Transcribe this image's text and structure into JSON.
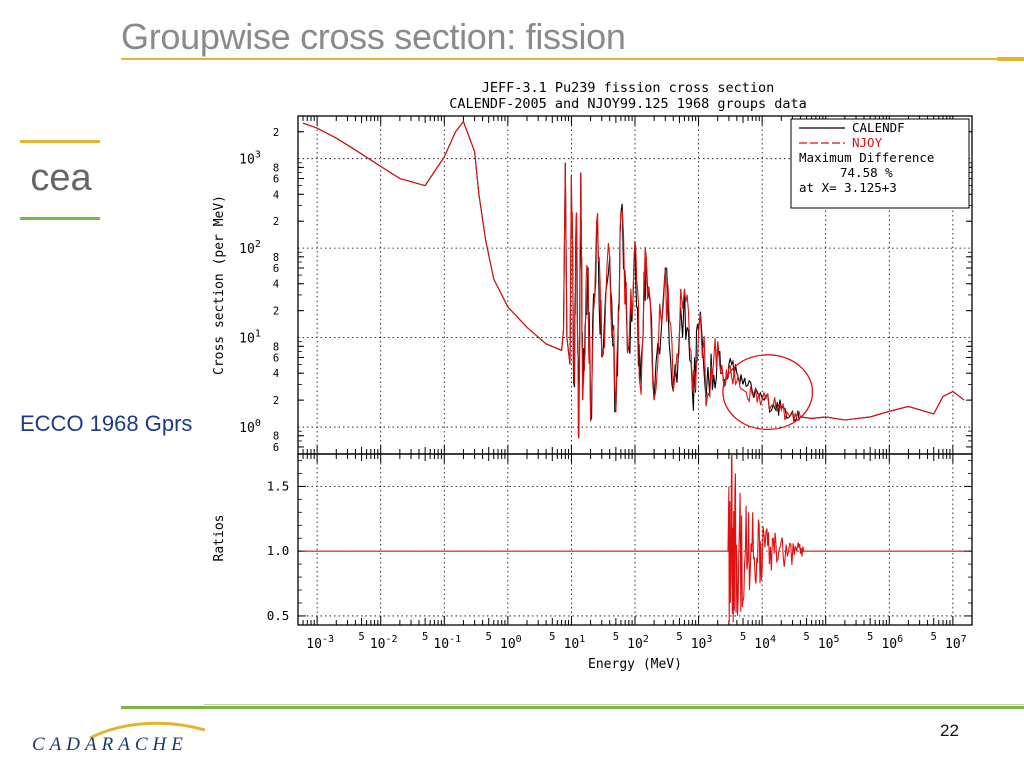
{
  "slide": {
    "title": "Groupwise cross section: fission",
    "side_label": "ECCO 1968 Gprs",
    "page_number": "22",
    "logo_left_text": "cea",
    "logo_bottom_text": "CADARACHE",
    "colors": {
      "title": "#8a8a8a",
      "title_rule": "#e6b330",
      "bottom_rule": "#7ab648",
      "side_label": "#1a3a8a",
      "calendf": "#000000",
      "njoy": "#e01010",
      "highlight_ellipse": "#e01010"
    }
  },
  "chart_data": [
    {
      "type": "line",
      "title": "JEFF-3.1 Pu239 fission cross section",
      "subtitle": "CALENDF-2005 and NJOY99.125 1968 groups data",
      "xlabel": "",
      "ylabel": "Cross section (per MeV)",
      "xscale": "log",
      "yscale": "log",
      "xlim": [
        0.0005,
        20000000
      ],
      "ylim": [
        0.5,
        3000
      ],
      "grid": true,
      "legend_position": "top-right",
      "series": [
        {
          "name": "CALENDF",
          "style": "solid",
          "color": "#000000",
          "x": [
            0.0006,
            0.001,
            0.002,
            0.004,
            0.01,
            0.02,
            0.05,
            0.1,
            0.15,
            0.2,
            0.3,
            0.35,
            0.45,
            0.6,
            1,
            2,
            4,
            7,
            7.5,
            8,
            8.5,
            9.5,
            10,
            11,
            12,
            13,
            14,
            15,
            18,
            20,
            25,
            30,
            40,
            50,
            60,
            80,
            100,
            120,
            150,
            200,
            300,
            400,
            600,
            800,
            1000,
            1500,
            2000,
            2500,
            3000,
            4000,
            5000,
            7000,
            10000,
            15000,
            20000,
            30000,
            40000,
            60000,
            100000,
            200000,
            500000,
            1000000,
            2000000,
            5000000,
            7000000,
            10000000,
            15000000
          ],
          "y": [
            2500,
            2200,
            1700,
            1250,
            820,
            600,
            500,
            1050,
            2000,
            2600,
            1200,
            400,
            120,
            45,
            22,
            13,
            8.5,
            7.2,
            12,
            900,
            10,
            5,
            650,
            3,
            250,
            0.75,
            700,
            2,
            55,
            1.2,
            200,
            6,
            80,
            1.5,
            250,
            8,
            120,
            3,
            80,
            2,
            60,
            2.5,
            35,
            2.5,
            12,
            2.2,
            9,
            2.8,
            5,
            4,
            3,
            2.5,
            2.1,
            1.8,
            1.6,
            1.5,
            1.3,
            1.25,
            1.3,
            1.2,
            1.3,
            1.5,
            1.7,
            1.4,
            2.2,
            2.5,
            2.0
          ]
        },
        {
          "name": "NJOY",
          "style": "dashed",
          "color": "#e01010",
          "x": [
            0.0006,
            0.001,
            0.002,
            0.004,
            0.01,
            0.02,
            0.05,
            0.1,
            0.15,
            0.2,
            0.3,
            0.35,
            0.45,
            0.6,
            1,
            2,
            4,
            7,
            7.5,
            8,
            8.5,
            9.5,
            10,
            11,
            12,
            13,
            14,
            15,
            18,
            20,
            25,
            30,
            40,
            50,
            60,
            80,
            100,
            120,
            150,
            200,
            300,
            400,
            600,
            800,
            1000,
            1500,
            2000,
            2500,
            3000,
            4000,
            5000,
            7000,
            10000,
            15000,
            20000,
            30000,
            40000,
            60000,
            100000,
            200000,
            500000,
            1000000,
            2000000,
            5000000,
            7000000,
            10000000,
            15000000
          ],
          "y": [
            2500,
            2200,
            1700,
            1250,
            820,
            600,
            500,
            1050,
            2000,
            2600,
            1200,
            400,
            120,
            45,
            22,
            13,
            8.5,
            7.2,
            12,
            900,
            10,
            5,
            650,
            3,
            250,
            0.75,
            700,
            2,
            55,
            1.2,
            200,
            6,
            80,
            1.5,
            250,
            8,
            120,
            3,
            80,
            2,
            60,
            2.5,
            35,
            2.5,
            12,
            2.2,
            9,
            2.8,
            4.5,
            3.2,
            2.6,
            2.3,
            2.0,
            1.75,
            1.55,
            1.45,
            1.3,
            1.25,
            1.3,
            1.2,
            1.3,
            1.5,
            1.7,
            1.4,
            2.2,
            2.5,
            2.0
          ]
        }
      ],
      "legend_notes": [
        "Maximum Difference",
        "74.58 %",
        "at X= 3.125+3"
      ],
      "y_tick_labels": [
        "10^0",
        "10^1",
        "10^2",
        "10^3"
      ],
      "y_minor_labels": [
        "6",
        "8",
        "2",
        "4",
        "6",
        "8",
        "2",
        "4",
        "6",
        "8",
        "2",
        "4",
        "6",
        "8",
        "2"
      ],
      "highlight_region": {
        "x_range": [
          3000,
          50000
        ],
        "y_range": [
          1.1,
          5.5
        ]
      }
    },
    {
      "type": "line",
      "title": "",
      "xlabel": "Energy (MeV)",
      "ylabel": "Ratios",
      "xscale": "log",
      "xlim": [
        0.0005,
        20000000
      ],
      "ylim": [
        0.43,
        1.75
      ],
      "grid": true,
      "y_ticks": [
        0.5,
        1.0,
        1.5
      ],
      "y_tick_labels": [
        "0.5",
        "1.0",
        "1.5"
      ],
      "x_ticks": [
        0.001,
        0.01,
        0.1,
        1,
        10,
        100,
        1000,
        10000,
        100000,
        1000000,
        10000000
      ],
      "x_tick_labels": [
        "10^-3",
        "10^-2",
        "10^-1",
        "10^0",
        "10^1",
        "10^2",
        "10^3",
        "10^4",
        "10^5",
        "10^6",
        "10^7"
      ],
      "x_minor_label": "5",
      "series": [
        {
          "name": "",
          "color": "#e01010",
          "x": [
            0.0006,
            1000,
            2900,
            3000,
            3150,
            3300,
            3500,
            3800,
            4100,
            4500,
            5000,
            5600,
            6300,
            7100,
            8000,
            9000,
            10000,
            11500,
            13000,
            15000,
            17000,
            20000,
            23000,
            27000,
            32000,
            36000,
            40000,
            45000,
            15000000
          ],
          "y": [
            1.0,
            1.0,
            1.0,
            1.5,
            0.6,
            1.72,
            0.45,
            1.6,
            0.5,
            1.45,
            0.62,
            1.35,
            0.7,
            1.3,
            0.75,
            1.2,
            0.85,
            1.15,
            0.9,
            1.1,
            0.92,
            1.08,
            0.95,
            1.06,
            0.97,
            1.04,
            0.98,
            1.0,
            1.0
          ]
        }
      ]
    }
  ]
}
